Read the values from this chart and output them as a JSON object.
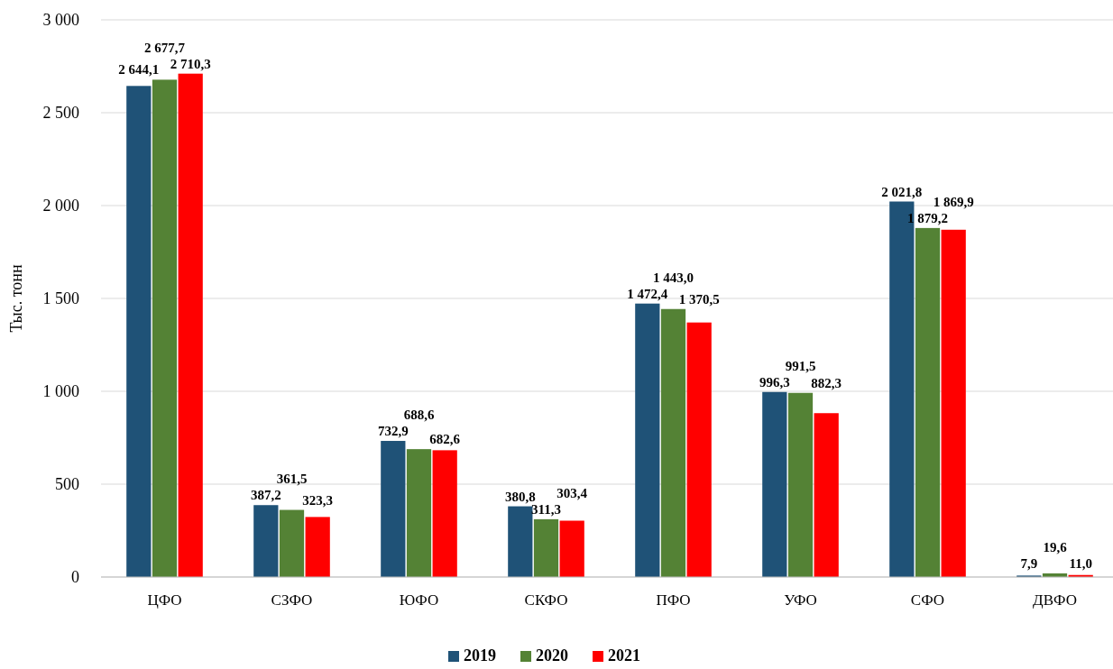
{
  "chart_data": {
    "type": "bar",
    "ylabel": "Тыс. тонн",
    "categories": [
      "ЦФО",
      "СЗФО",
      "ЮФО",
      "СКФО",
      "ПФО",
      "УФО",
      "СФО",
      "ДВФО"
    ],
    "series": [
      {
        "name": "2019",
        "color": "#1f5277",
        "values": [
          2644.1,
          387.2,
          732.9,
          380.8,
          1472.4,
          996.3,
          2021.8,
          7.9
        ],
        "value_labels": [
          "2 644,1",
          "387,2",
          "732,9",
          "380,8",
          "1 472,4",
          "996,3",
          "2 021,8",
          "7,9"
        ]
      },
      {
        "name": "2020",
        "color": "#548235",
        "values": [
          2677.7,
          361.5,
          688.6,
          311.3,
          1443.0,
          991.5,
          1879.2,
          19.6
        ],
        "value_labels": [
          "2 677,7",
          "361,5",
          "688,6",
          "311,3",
          "1 443,0",
          "991,5",
          "1 879,2",
          "19,6"
        ]
      },
      {
        "name": "2021",
        "color": "#ff0000",
        "values": [
          2710.3,
          323.3,
          682.6,
          303.4,
          1370.5,
          882.3,
          1869.9,
          11.0
        ],
        "value_labels": [
          "2 710,3",
          "323,3",
          "682,6",
          "303,4",
          "1 370,5",
          "882,3",
          "1 869,9",
          "11,0"
        ]
      }
    ],
    "ylim": [
      0,
      3000
    ],
    "yticks": [
      {
        "value": 0,
        "label": "0"
      },
      {
        "value": 500,
        "label": "500"
      },
      {
        "value": 1000,
        "label": "1 000"
      },
      {
        "value": 1500,
        "label": "1 500"
      },
      {
        "value": 2000,
        "label": "2 000"
      },
      {
        "value": 2500,
        "label": "2 500"
      },
      {
        "value": 3000,
        "label": "3 000"
      }
    ],
    "grid": "y",
    "legend": "bottom"
  }
}
